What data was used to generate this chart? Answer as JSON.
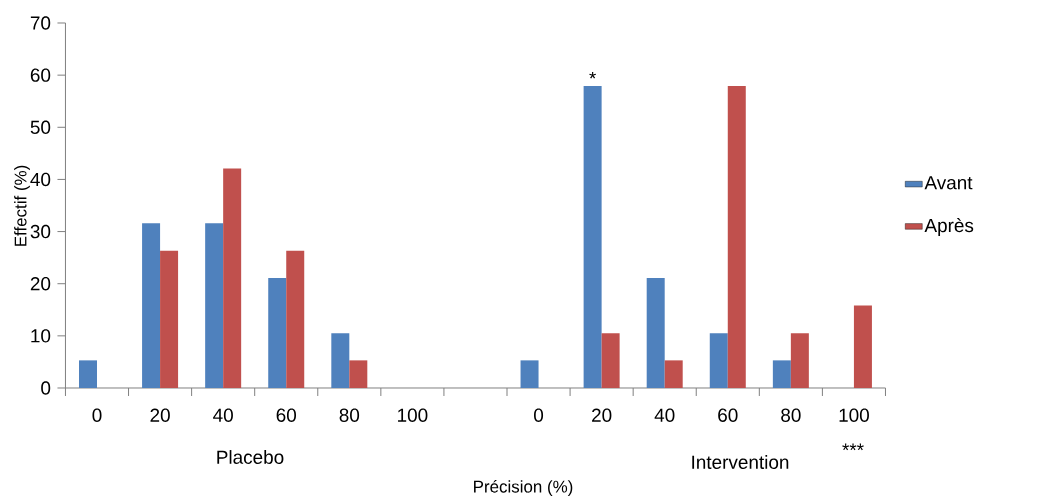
{
  "chart_data": {
    "type": "bar",
    "xlabel": "Précision (%)",
    "ylabel": "Effectif (%)",
    "categories": [
      "0",
      "20",
      "40",
      "60",
      "80",
      "100",
      null,
      "0",
      "20",
      "40",
      "60",
      "80",
      "100"
    ],
    "series": [
      {
        "name": "Avant",
        "color": "#4f81bd",
        "values": [
          5.3,
          31.6,
          31.6,
          21.1,
          10.5,
          0,
          null,
          5.3,
          57.9,
          21.1,
          10.5,
          5.3,
          0
        ]
      },
      {
        "name": "Après",
        "color": "#c0504d",
        "values": [
          0,
          26.3,
          42.1,
          26.3,
          5.3,
          0,
          null,
          0,
          10.5,
          5.3,
          57.9,
          10.5,
          15.8
        ]
      }
    ],
    "ylim": [
      0,
      70
    ],
    "yticks": [
      0,
      10,
      20,
      30,
      40,
      50,
      60,
      70
    ],
    "grid": false,
    "legend": "right",
    "annotations": [
      "*",
      "Placebo",
      "Intervention",
      "***"
    ]
  }
}
